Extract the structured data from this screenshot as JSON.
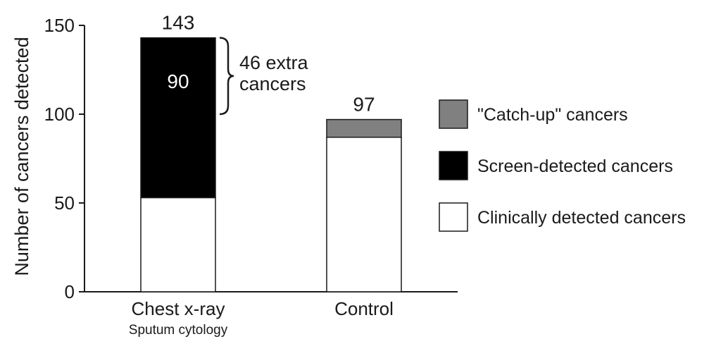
{
  "chart_data": {
    "type": "bar",
    "stacked": true,
    "title": "",
    "xlabel": "",
    "ylabel": "Number of cancers detected",
    "ylim": [
      0,
      150
    ],
    "yticks": [
      0,
      50,
      100,
      150
    ],
    "grid": false,
    "legend_position": "right",
    "categories": [
      {
        "label": "Chest x-ray",
        "sublabel": "Sputum cytology"
      },
      {
        "label": "Control",
        "sublabel": ""
      }
    ],
    "series": [
      {
        "name": "Clinically detected cancers",
        "color": "#ffffff",
        "values": [
          53,
          87
        ]
      },
      {
        "name": "Screen-detected cancers",
        "color": "#000000",
        "values": [
          90,
          0
        ]
      },
      {
        "name": "\"Catch-up\" cancers",
        "color": "#808080",
        "values": [
          0,
          10
        ]
      }
    ],
    "totals": [
      "143",
      "97"
    ],
    "segment_labels": [
      {
        "category": 0,
        "series": 1,
        "text": "90",
        "color": "#ffffff"
      }
    ],
    "annotation": {
      "category": 0,
      "from": 100,
      "to": 143,
      "lines": [
        "46 extra",
        "cancers"
      ]
    }
  }
}
